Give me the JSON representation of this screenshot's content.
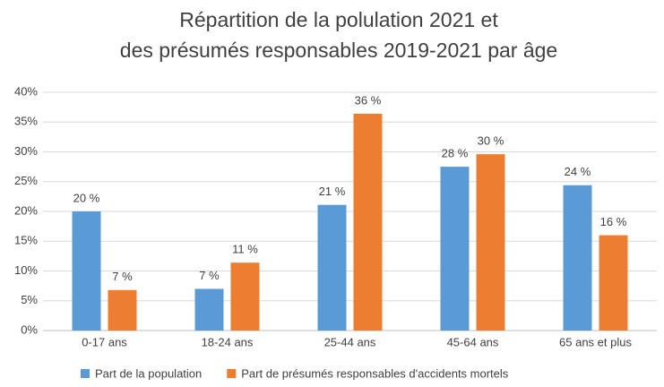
{
  "chart_data": {
    "type": "bar",
    "title": [
      "Répartition de la polulation 2021 et",
      "des présumés responsables 2019-2021 par âge"
    ],
    "categories": [
      "0-17 ans",
      "18-24 ans",
      "25-44 ans",
      "45-64 ans",
      "65 ans et plus"
    ],
    "series": [
      {
        "name": "Part de la population",
        "color": "#5b9bd5",
        "values": [
          20,
          7,
          21.1,
          27.5,
          24.4
        ],
        "value_labels": [
          "20 %",
          "7 %",
          "21 %",
          "28 %",
          "24 %"
        ]
      },
      {
        "name": "Part de présumés responsables d'accidents mortels",
        "color": "#ed7d31",
        "values": [
          6.8,
          11.4,
          36.4,
          29.6,
          16
        ],
        "value_labels": [
          "7 %",
          "11 %",
          "36 %",
          "30 %",
          "16 %"
        ]
      }
    ],
    "ylim": [
      0,
      40
    ],
    "yticks": [
      {
        "value": 0,
        "label": "0%"
      },
      {
        "value": 5,
        "label": "5%"
      },
      {
        "value": 10,
        "label": "10%"
      },
      {
        "value": 15,
        "label": "15%"
      },
      {
        "value": 20,
        "label": "20%"
      },
      {
        "value": 25,
        "label": "25%"
      },
      {
        "value": 30,
        "label": "30%"
      },
      {
        "value": 35,
        "label": "35%"
      },
      {
        "value": 40,
        "label": "40%"
      }
    ],
    "grid": true,
    "legend": "bottom"
  }
}
